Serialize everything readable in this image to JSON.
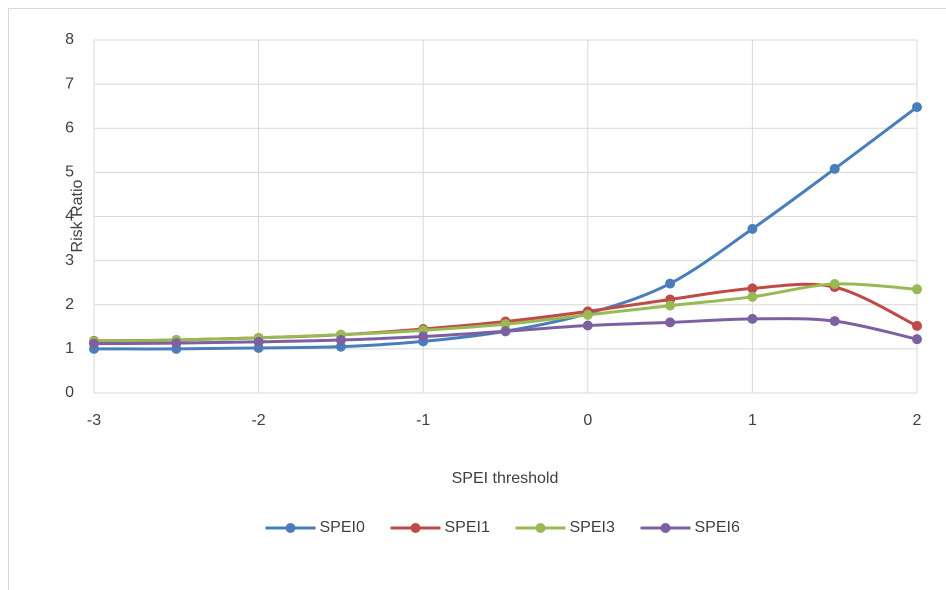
{
  "chart_data": {
    "type": "line",
    "xlabel": "SPEI threshold",
    "ylabel": "Risk Ratio",
    "x": [
      -3,
      -2.5,
      -2,
      -1.5,
      -1,
      -0.5,
      0,
      0.5,
      1,
      1.5,
      2
    ],
    "xlim": [
      -3,
      2
    ],
    "xticks": [
      -3,
      -2,
      -1,
      0,
      1,
      2
    ],
    "ylim": [
      0,
      8
    ],
    "yticks": [
      0,
      1,
      2,
      3,
      4,
      5,
      6,
      7,
      8
    ],
    "grid": true,
    "smooth": true,
    "legend": "bottom",
    "series": [
      {
        "name": "SPEI0",
        "color": "#4a7ebb",
        "values": [
          1.0,
          1.0,
          1.02,
          1.05,
          1.17,
          1.4,
          1.8,
          2.48,
          3.72,
          5.08,
          6.48
        ]
      },
      {
        "name": "SPEI1",
        "color": "#be4b48",
        "values": [
          1.18,
          1.2,
          1.25,
          1.32,
          1.45,
          1.62,
          1.85,
          2.12,
          2.37,
          2.4,
          1.52
        ]
      },
      {
        "name": "SPEI3",
        "color": "#98b954",
        "values": [
          1.17,
          1.2,
          1.25,
          1.32,
          1.42,
          1.56,
          1.77,
          1.98,
          2.18,
          2.47,
          2.35
        ]
      },
      {
        "name": "SPEI6",
        "color": "#7d60a0",
        "values": [
          1.12,
          1.13,
          1.16,
          1.2,
          1.28,
          1.4,
          1.53,
          1.6,
          1.68,
          1.63,
          1.22
        ]
      }
    ]
  }
}
